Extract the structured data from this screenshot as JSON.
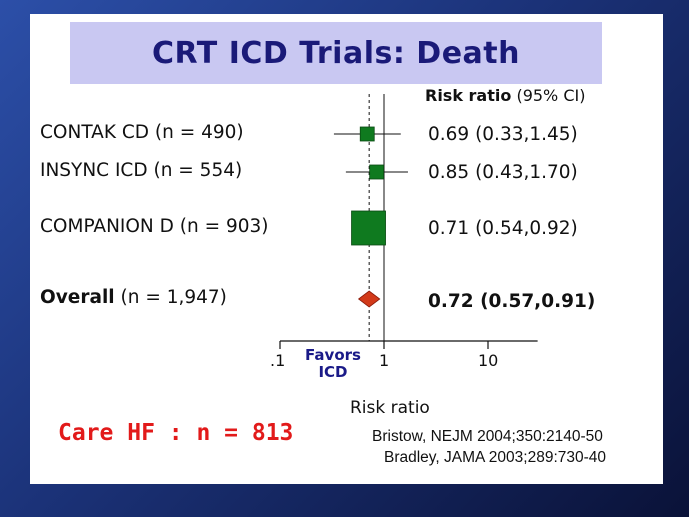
{
  "title": "CRT ICD Trials: Death",
  "ci_header": {
    "label": "Risk ratio",
    "unit": "(95% CI)"
  },
  "chart_data": {
    "type": "forest",
    "xlabel": "Risk ratio",
    "x_scale": "log",
    "xlim": [
      0.1,
      30
    ],
    "xticks": [
      {
        "value": 0.1,
        "label": ".1"
      },
      {
        "value": 1,
        "label": "1"
      },
      {
        "value": 10,
        "label": "10"
      }
    ],
    "reference_line": 1,
    "overall_line": 0.72,
    "favors_label": "Favors ICD",
    "studies": [
      {
        "name": "CONTAK CD",
        "n": "(n = 490)",
        "rr": 0.69,
        "lo": 0.33,
        "hi": 1.45,
        "ci_text": "0.69 (0.33,1.45)",
        "bold": false
      },
      {
        "name": "INSYNC ICD",
        "n": "(n = 554)",
        "rr": 0.85,
        "lo": 0.43,
        "hi": 1.7,
        "ci_text": "0.85 (0.43,1.70)",
        "bold": false
      },
      {
        "name": "COMPANION D",
        "n": "(n = 903)",
        "rr": 0.71,
        "lo": 0.54,
        "hi": 0.92,
        "ci_text": "0.71 (0.54,0.92)",
        "bold": false
      }
    ],
    "overall": {
      "name": "Overall",
      "n": "(n = 1,947)",
      "rr": 0.72,
      "lo": 0.57,
      "hi": 0.91,
      "ci_text": "0.72 (0.57,0.91)",
      "bold": true
    },
    "colors": {
      "study_marker": "#0f7a1f",
      "overall_marker": "#d23a1a",
      "favors_text": "#1a1a88"
    }
  },
  "annotation": "Care HF : n = 813",
  "references": [
    "Bristow, NEJM 2004;350:2140-50",
    "Bradley, JAMA 2003;289:730-40"
  ],
  "colors": {
    "title_bg": "#c9c8f2",
    "title_text": "#1a1a78",
    "annotation": "#e21a1a"
  }
}
